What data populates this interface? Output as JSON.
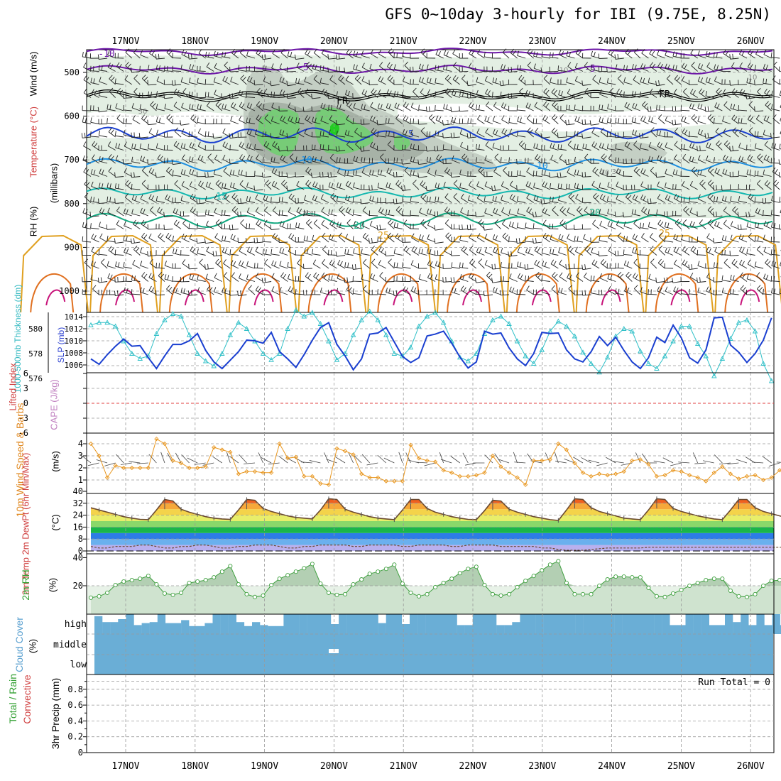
{
  "title": "GFS 0~10day 3-hourly for IBI (9.75E, 8.25N)",
  "colors": {
    "temp_cold": "#6d17a8",
    "temp_fr": "#000000",
    "temp_5": "#1a3fd0",
    "temp_10": "#1e8fe0",
    "temp_15": "#15b8b0",
    "temp_20": "#12a880",
    "temp_25": "#e0a020",
    "temp_30": "#e07020",
    "temp_35": "#c8147a",
    "thickness": "#30c0c8",
    "slp": "#1a3fd0",
    "wind10m": "#e8961e",
    "rh": "#40a040",
    "cloud": "#6aaed6",
    "lifted": "#e04040"
  },
  "chart_data": [
    {
      "id": "upper_air",
      "type": "line",
      "x": [
        "17NOV",
        "18NOV",
        "19NOV",
        "20NOV",
        "21NOV",
        "22NOV",
        "23NOV",
        "24NOV",
        "25NOV",
        "26NOV"
      ],
      "ylabel": "(millibars)",
      "ylabel_parts": [
        "RH (%)",
        "Temperature (°C)",
        "Wind (m/s)"
      ],
      "yticks": [
        "500",
        "600",
        "700",
        "800",
        "900",
        "1000"
      ],
      "ylim": [
        450,
        1050
      ],
      "isotherm_labels": [
        "-10",
        "-5",
        "-5",
        "FR",
        "FR",
        "5",
        "10",
        "10",
        "15",
        "20",
        "20",
        "25",
        "25"
      ],
      "rh_labels": [
        "30",
        "10",
        "10",
        "10",
        "30",
        "30",
        "30"
      ]
    },
    {
      "id": "thickness_slp",
      "type": "line",
      "ylabel": "1000-500mb Thickness (dm)",
      "ylabel2": "SLP (mb)",
      "thickness_ticks": [
        "576",
        "578",
        "580"
      ],
      "slp_ticks": [
        "1006",
        "1008",
        "1010",
        "1012",
        "1014"
      ],
      "series": [
        {
          "name": "Thickness",
          "values": [
            580.3,
            580.5,
            580.5,
            580.2,
            579.0,
            578.0,
            577.6,
            577.8,
            579.6,
            580.7,
            581.2,
            581.0,
            579.5,
            578.0,
            577.4,
            577.0,
            578.0,
            579.5,
            580.5,
            580.0,
            579.0,
            578.0,
            577.5,
            578.0,
            580.0,
            581.5,
            581.0,
            581.3,
            580.4,
            579.0,
            577.5,
            578.0,
            579.5,
            580.7,
            581.4,
            580.7,
            579.5,
            578.0,
            577.8,
            578.5,
            580.2,
            581.0,
            581.3,
            580.5,
            579.0,
            577.7,
            577.4,
            578.0,
            579.6,
            580.7,
            581.0,
            580.4,
            579.0,
            577.8,
            577.2,
            578.3,
            579.8,
            580.6,
            580.2,
            579.4,
            578.1,
            577.2,
            576.5,
            577.7,
            579.4,
            580.0,
            579.8,
            578.2,
            577.2,
            576.8,
            577.8,
            579.0,
            580.2,
            580.2,
            578.8,
            577.8,
            576.2,
            577.6,
            579.2,
            580.5,
            580.7,
            579.8,
            577.2,
            575.8
          ]
        },
        {
          "name": "SLP",
          "values": [
            1007.0,
            1006.1,
            1007.7,
            1009.1,
            1010.3,
            1009.1,
            1009.2,
            1007.2,
            1005.4,
            1007.5,
            1009.4,
            1009.4,
            1010.0,
            1011.2,
            1008.4,
            1006.5,
            1005.4,
            1006.8,
            1008.2,
            1010.1,
            1010.0,
            1009.6,
            1011.4,
            1008.2,
            1007.0,
            1005.6,
            1007.7,
            1010.1,
            1012.2,
            1013.0,
            1009.4,
            1007.5,
            1005.2,
            1007.0,
            1011.1,
            1011.3,
            1012.2,
            1009.8,
            1007.4,
            1006.4,
            1007.2,
            1010.8,
            1011.1,
            1011.6,
            1009.6,
            1007.3,
            1005.5,
            1006.5,
            1011.6,
            1011.1,
            1011.3,
            1008.8,
            1007.0,
            1005.9,
            1007.9,
            1011.4,
            1011.2,
            1011.3,
            1008.5,
            1007.0,
            1006.5,
            1008.2,
            1010.7,
            1009.2,
            1010.6,
            1008.4,
            1006.5,
            1005.4,
            1007.2,
            1010.6,
            1009.7,
            1012.6,
            1010.5,
            1007.2,
            1006.3,
            1008.5,
            1013.8,
            1013.9,
            1009.3,
            1008.1,
            1006.4,
            1007.9,
            1010.1,
            1013.8
          ]
        }
      ]
    },
    {
      "id": "stability",
      "type": "line",
      "ylabel": "Lifted Index",
      "ylabel2": "CAPE (J/kg)",
      "yticks": [
        "-6",
        "-3",
        "0",
        "3",
        "6"
      ],
      "ylim": [
        -6,
        6
      ],
      "reference": 0
    },
    {
      "id": "wind10m",
      "type": "line",
      "ylabel": "10m Wind Speed & Barbs",
      "units": "(m/s)",
      "yticks": [
        "1",
        "2",
        "3",
        "4"
      ],
      "ylim": [
        0,
        4.6
      ],
      "series": [
        {
          "values": [
            4.0,
            3.0,
            1.2,
            2.2,
            2.0,
            2.0,
            2.0,
            2.0,
            4.4,
            4.0,
            2.6,
            2.4,
            2.0,
            2.0,
            2.1,
            3.7,
            3.5,
            3.3,
            1.5,
            1.7,
            1.7,
            1.6,
            1.6,
            4.0,
            2.8,
            2.9,
            1.3,
            1.3,
            0.7,
            0.6,
            3.6,
            3.4,
            3.1,
            1.5,
            1.2,
            1.2,
            0.9,
            0.9,
            0.9,
            3.9,
            2.8,
            2.6,
            2.5,
            1.8,
            1.6,
            1.3,
            1.3,
            1.4,
            1.6,
            3.0,
            2.1,
            1.6,
            1.2,
            0.6,
            2.6,
            2.6,
            2.7,
            4.0,
            3.5,
            2.4,
            1.6,
            1.3,
            1.5,
            1.4,
            1.5,
            1.7,
            2.6,
            2.7,
            2.3,
            1.3,
            1.4,
            1.8,
            1.7,
            1.4,
            1.2,
            0.9,
            1.6,
            2.1,
            1.5,
            1.1,
            1.3,
            1.4,
            1.0,
            1.2,
            1.8,
            1.9,
            1.7,
            1.5
          ]
        }
      ]
    },
    {
      "id": "temp2m",
      "type": "area",
      "ylabel": "2m Temp 2m DewPt (6hr Min/Max)",
      "units": "(°C)",
      "yticks": [
        "0",
        "8",
        "16",
        "24",
        "32",
        "40"
      ],
      "ylim": [
        0,
        40
      ],
      "series": [
        {
          "name": "2m Temp",
          "values": [
            29.0,
            27.5,
            26.0,
            24.5,
            23.0,
            22.0,
            21.2,
            21.0,
            27.5,
            34.5,
            33.5,
            28.0,
            26.0,
            24.5,
            23.0,
            22.0,
            21.5,
            21.2,
            27.5,
            34.5,
            34.0,
            28.5,
            26.5,
            25.0,
            23.5,
            22.5,
            22.0,
            21.5,
            27.5,
            35.0,
            34.5,
            28.0,
            26.0,
            24.5,
            23.0,
            22.0,
            21.5,
            21.0,
            27.5,
            34.5,
            34.5,
            28.5,
            26.0,
            24.5,
            23.0,
            22.0,
            21.2,
            21.0,
            27.0,
            34.0,
            33.5,
            28.0,
            26.0,
            24.5,
            23.0,
            22.0,
            21.0,
            20.5,
            27.5,
            35.0,
            34.5,
            29.0,
            26.5,
            25.0,
            23.5,
            22.0,
            21.5,
            21.0,
            27.5,
            35.0,
            34.5,
            28.5,
            26.5,
            25.0,
            23.5,
            22.5,
            21.5,
            21.0,
            27.5,
            34.5,
            34.5,
            29.0,
            26.5,
            25.0,
            23.5,
            22.0,
            21.0,
            20.5
          ]
        },
        {
          "name": "2m DewPt",
          "values": [
            3.0,
            2.0,
            2.0,
            3.0,
            3.0,
            3.0,
            4.0,
            4.0,
            3.0,
            2.0,
            2.0,
            3.0,
            3.0,
            4.0,
            4.0,
            3.0,
            2.0,
            2.0,
            3.0,
            3.0,
            4.0,
            4.0,
            4.0,
            3.0,
            2.0,
            2.0,
            3.0,
            3.0,
            4.0,
            4.0,
            4.0,
            4.0,
            3.0,
            3.0,
            4.0,
            4.0,
            4.0,
            4.0,
            3.0,
            3.0,
            4.0,
            4.0,
            4.0,
            4.0,
            3.0,
            3.0,
            4.0,
            4.0,
            4.0,
            4.0,
            3.0,
            3.0,
            3.0,
            3.0,
            3.0,
            2.0,
            2.0,
            1.0,
            0.5,
            0.5,
            0.5,
            1.0,
            1.5,
            2.0,
            2.0,
            2.0,
            2.0,
            2.0,
            2.5,
            2.5,
            2.5,
            2.5,
            2.5,
            2.5,
            2.5,
            2.5,
            2.5,
            2.5,
            2.5,
            2.5,
            2.5,
            2.5,
            2.5,
            2.5,
            2.5,
            2.5,
            2.0,
            2.0
          ]
        }
      ]
    },
    {
      "id": "rh2m",
      "type": "area",
      "ylabel": "2m RH",
      "units": "(%)",
      "yticks": [
        "20",
        "40"
      ],
      "ylim": [
        5,
        40
      ],
      "series": [
        {
          "values": [
            11.5,
            12.5,
            15.0,
            20.5,
            23.0,
            24.0,
            25.0,
            27.0,
            21.0,
            14.5,
            13.5,
            15.0,
            22.0,
            23.0,
            24.0,
            26.0,
            30.0,
            34.0,
            21.0,
            14.0,
            12.0,
            13.0,
            20.5,
            25.0,
            27.5,
            30.0,
            32.5,
            35.5,
            21.5,
            15.0,
            13.5,
            14.0,
            21.0,
            24.5,
            28.5,
            30.0,
            32.0,
            35.0,
            21.5,
            15.0,
            12.5,
            14.0,
            19.0,
            22.0,
            25.0,
            29.0,
            32.0,
            33.5,
            20.5,
            14.0,
            13.0,
            14.0,
            19.0,
            23.5,
            27.0,
            31.0,
            35.0,
            37.5,
            22.0,
            14.0,
            14.0,
            14.0,
            20.0,
            24.5,
            26.5,
            26.5,
            26.0,
            26.0,
            18.5,
            12.5,
            12.0,
            14.5,
            17.0,
            20.0,
            22.0,
            24.0,
            25.0,
            25.0,
            16.5,
            12.5,
            12.0,
            14.0,
            20.0,
            23.5,
            24.0,
            26.0,
            30.0,
            33.0
          ]
        }
      ]
    },
    {
      "id": "cloud",
      "type": "area",
      "ylabel": "Cloud Cover",
      "units": "(%)",
      "levels": [
        "high",
        "middle",
        "low"
      ],
      "high_cover": [
        90,
        60,
        60,
        75,
        100,
        45,
        55,
        60,
        100,
        55,
        55,
        70,
        40,
        40,
        55,
        100,
        100,
        100,
        60,
        40,
        60,
        45,
        40,
        40,
        100,
        100,
        100,
        100,
        100,
        100,
        50,
        100,
        100,
        100,
        100,
        100,
        55,
        100,
        100,
        50,
        100,
        100,
        100,
        100,
        100,
        100,
        45,
        45,
        100,
        100,
        100,
        45,
        45,
        60,
        100,
        100,
        100,
        100,
        100,
        100,
        100,
        100,
        100,
        100,
        100,
        100,
        100,
        100,
        100,
        100,
        100,
        100,
        100,
        45,
        45,
        100,
        100,
        100,
        45,
        45,
        100,
        60,
        100,
        45,
        100,
        45,
        100,
        45
      ]
    },
    {
      "id": "precip",
      "type": "bar",
      "ylabel": "3hr Precip (mm)",
      "ylabel_parts": [
        "Total / Rain",
        "Convective"
      ],
      "yticks": [
        "0",
        "0.2",
        "0.4",
        "0.6",
        "0.8"
      ],
      "ylim": [
        0,
        0.95
      ],
      "note": "Run Total = 0"
    }
  ]
}
